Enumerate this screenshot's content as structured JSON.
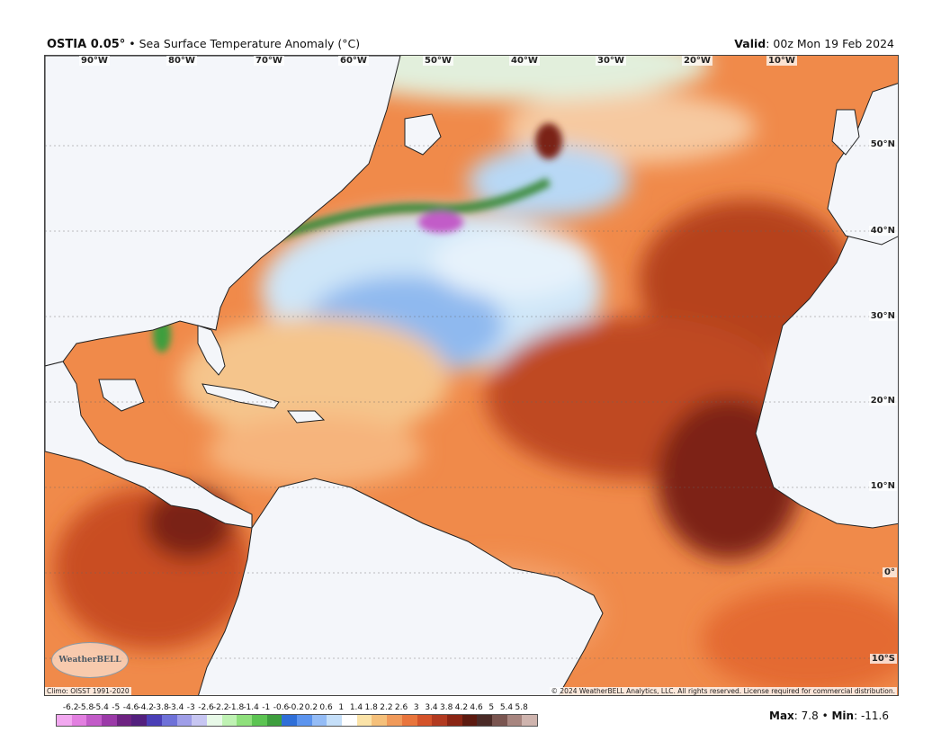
{
  "header": {
    "product": "OSTIA 0.05",
    "degree_symbol": "°",
    "separator": "•",
    "variable": "Sea Surface Temperature Anomaly (°C)",
    "valid_label": "Valid",
    "valid_time": "00z Mon 19 Feb 2024"
  },
  "map": {
    "region": "North Atlantic Ocean",
    "lon_labels": [
      "90°W",
      "80°W",
      "70°W",
      "60°W",
      "50°W",
      "40°W",
      "30°W",
      "20°W",
      "10°W"
    ],
    "lat_labels": [
      "50°N",
      "40°N",
      "30°N",
      "20°N",
      "10°N",
      "0°",
      "10°S"
    ],
    "land_color": "#f4f6fa",
    "border_color": "#222222"
  },
  "footer": {
    "climo": "Climo: OISST 1991-2020",
    "copyright": "© 2024 WeatherBELL Analytics, LLC. All rights reserved. License required for commercial distribution.",
    "logo_text": "WeatherBELL"
  },
  "colorbar": {
    "ticks": [
      "-6.2",
      "-5.8",
      "-5.4",
      "-5",
      "-4.6",
      "-4.2",
      "-3.8",
      "-3.4",
      "-3",
      "-2.6",
      "-2.2",
      "-1.8",
      "-1.4",
      "-1",
      "-0.6",
      "-0.2",
      "0.2",
      "0.6",
      "1",
      "1.4",
      "1.8",
      "2.2",
      "2.6",
      "3",
      "3.4",
      "3.8",
      "4.2",
      "4.6",
      "5",
      "5.4",
      "5.8"
    ],
    "colors": [
      "#f2a8f0",
      "#e27fe0",
      "#c25bc8",
      "#9b3aa8",
      "#6e2382",
      "#53207e",
      "#4a3fb6",
      "#6e71d8",
      "#9f9ee8",
      "#c7c6f2",
      "#e8f9e8",
      "#bff2b3",
      "#8fe07c",
      "#5cc452",
      "#3e9e3e",
      "#2f6fd8",
      "#5c94ee",
      "#94bcf6",
      "#c5dff9",
      "#ffffff",
      "#fbe3a8",
      "#f5c07a",
      "#f09a5a",
      "#e9753c",
      "#d4532a",
      "#b23a20",
      "#8a2514",
      "#5c1a10",
      "#4a2a26",
      "#7a5550",
      "#a7857f"
    ],
    "colors_extra": [
      "#cfb4ae",
      "#e9d7d3",
      "#f5e6e6",
      "#e6a9a9",
      "#c55a5a"
    ]
  },
  "stats": {
    "max_label": "Max",
    "max_value": "7.8",
    "min_label": "Min",
    "min_value": "-11.6"
  }
}
